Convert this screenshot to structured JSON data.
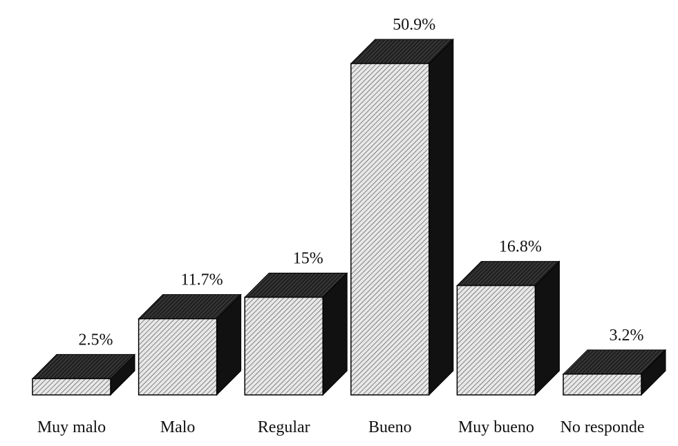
{
  "chart_data": {
    "type": "bar3d",
    "categories": [
      "Muy malo",
      "Malo",
      "Regular",
      "Bueno",
      "Muy bueno",
      "No responde"
    ],
    "values": [
      2.5,
      11.7,
      15,
      50.9,
      16.8,
      3.2
    ],
    "value_labels": [
      "2.5%",
      "11.7%",
      "15%",
      "50.9%",
      "16.8%",
      "3.2%"
    ]
  }
}
